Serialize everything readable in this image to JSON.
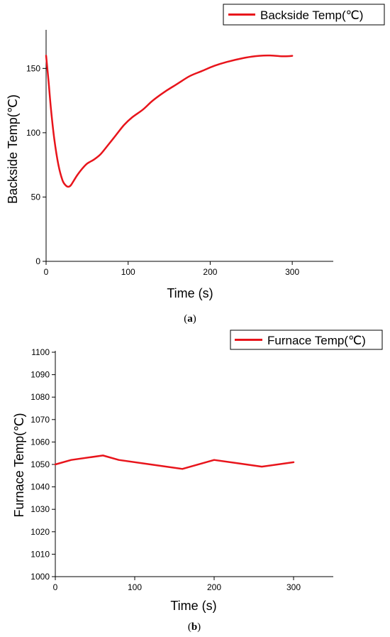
{
  "chart_data": [
    {
      "type": "line",
      "panel_label": {
        "open": "(",
        "letter": "a",
        "close": ")"
      },
      "xlabel": "Time (s)",
      "ylabel": "Backside Temp(℃)",
      "xlim": [
        0,
        350
      ],
      "ylim": [
        0,
        180
      ],
      "xticks": [
        0,
        100,
        200,
        300
      ],
      "yticks": [
        0,
        50,
        100,
        150
      ],
      "legend_position": "top-right",
      "grid": false,
      "color": "#e8141b",
      "series": [
        {
          "name": "Backside Temp(℃)",
          "x": [
            0,
            3,
            6,
            10,
            15,
            20,
            24,
            27,
            30,
            34,
            38,
            44,
            50,
            58,
            66,
            75,
            85,
            95,
            105,
            118,
            130,
            145,
            160,
            175,
            190,
            205,
            220,
            240,
            255,
            265,
            275,
            285,
            295,
            300
          ],
          "y": [
            160,
            140,
            118,
            95,
            75,
            63,
            59,
            58,
            59,
            63,
            67,
            72,
            76,
            79,
            83,
            90,
            98,
            106,
            112,
            118,
            125,
            132,
            138,
            144,
            148,
            152,
            155,
            158,
            159.5,
            160,
            160,
            159.5,
            159.5,
            159.8
          ]
        }
      ]
    },
    {
      "type": "line",
      "panel_label": {
        "open": "(",
        "letter": "b",
        "close": ")"
      },
      "xlabel": "Time (s)",
      "ylabel": "Furnace Temp(℃)",
      "xlim": [
        0,
        350
      ],
      "ylim": [
        1000,
        1100
      ],
      "xticks": [
        0,
        100,
        200,
        300
      ],
      "yticks": [
        1000,
        1010,
        1020,
        1030,
        1040,
        1050,
        1060,
        1070,
        1080,
        1090,
        1100
      ],
      "legend_position": "top-right",
      "grid": false,
      "color": "#e8141b",
      "series": [
        {
          "name": "Furnace Temp(℃)",
          "x": [
            0,
            20,
            60,
            80,
            120,
            160,
            200,
            230,
            260,
            300
          ],
          "y": [
            1050,
            1052,
            1054,
            1052,
            1050,
            1048,
            1052,
            1050.5,
            1049,
            1051
          ]
        }
      ]
    }
  ]
}
